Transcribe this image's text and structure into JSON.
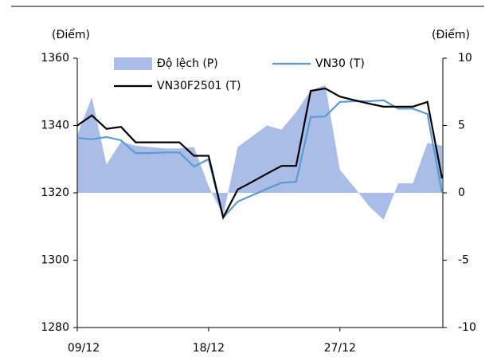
{
  "chart_data": {
    "type": "line",
    "ylabel": "(Điểm)",
    "y2label": "(Điểm)",
    "categories": [
      "09/12",
      null,
      null,
      null,
      null,
      null,
      null,
      null,
      null,
      "18/12",
      null,
      null,
      null,
      null,
      null,
      null,
      null,
      null,
      "27/12",
      null,
      null,
      null,
      null,
      null,
      null,
      null
    ],
    "series": [
      {
        "name": "Độ lệch (P)",
        "type": "area",
        "axis": "y2",
        "color": "#a9bde6",
        "values": [
          4.3,
          7.1,
          2.1,
          3.8,
          3.5,
          3.4,
          3.3,
          3.3,
          3.4,
          0.5,
          -1.7,
          3.4,
          4.2,
          5.0,
          4.7,
          6.0,
          7.6,
          8.0,
          1.7,
          0.4,
          -1.0,
          -2.0,
          0.7,
          0.7,
          3.7,
          3.5
        ]
      },
      {
        "name": "VN30 (T)",
        "type": "line",
        "color": "#5b9bd5",
        "values": [
          1336.3,
          1335.9,
          1336.6,
          1335.6,
          1331.8,
          1331.8,
          1332,
          1332,
          1327.8,
          1330,
          1312.7,
          1317.4,
          1319.3,
          1321.2,
          1323,
          1323.3,
          1342.5,
          1342.7,
          1347,
          1347.2,
          1347.2,
          1347.5,
          1345,
          1345,
          1343.4,
          1320
        ]
      },
      {
        "name": "VN30F2501 (T)",
        "type": "line",
        "color": "#000000",
        "values": [
          1340,
          1343,
          1339,
          1339.6,
          1335,
          1335,
          1335,
          1335,
          1331,
          1331,
          1312.7,
          1321,
          1323.3,
          1325.7,
          1328,
          1328,
          1350.3,
          1351,
          1348.6,
          1347.5,
          1346.5,
          1345.6,
          1345.6,
          1345.6,
          1347,
          1324.3
        ]
      }
    ],
    "ylim": [
      1280,
      1360
    ],
    "yticks": [
      1280,
      1300,
      1320,
      1340,
      1360
    ],
    "y2lim": [
      -10,
      10
    ],
    "y2ticks": [
      -10,
      -5,
      0,
      5,
      10
    ]
  }
}
